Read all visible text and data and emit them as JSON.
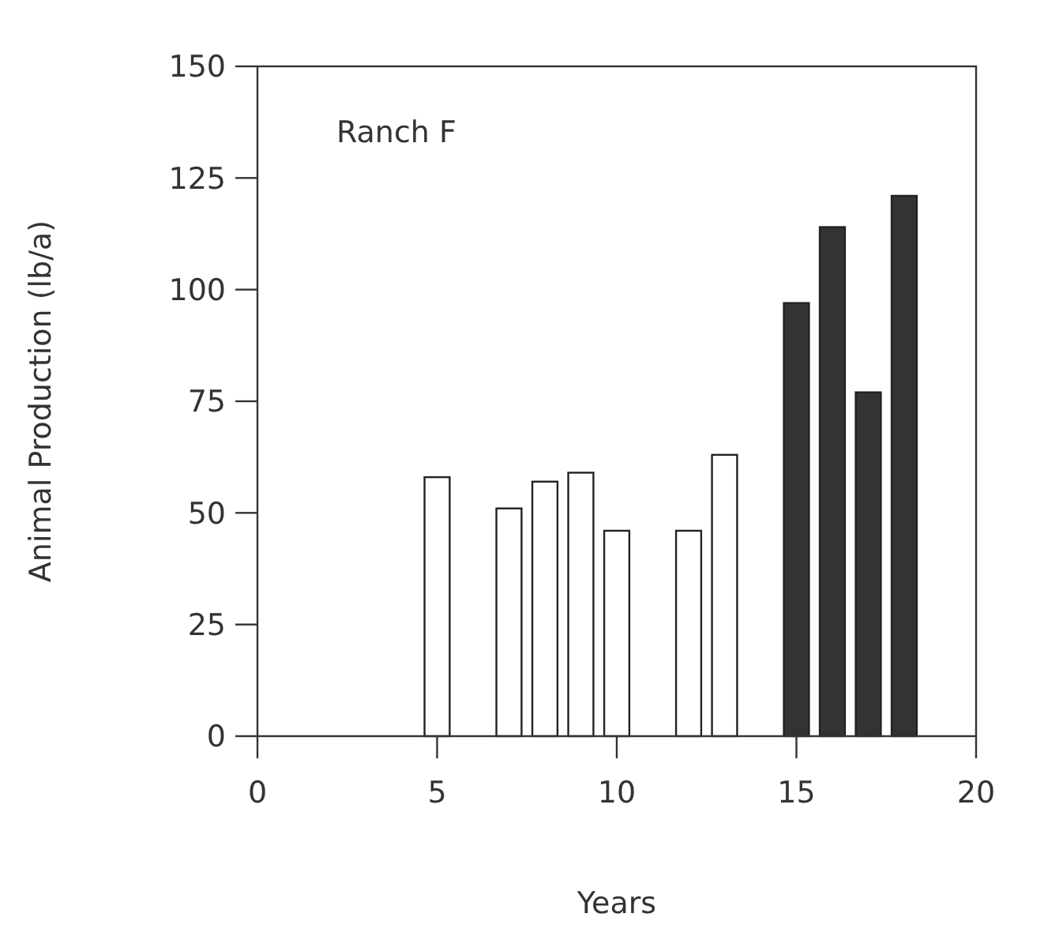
{
  "chart_data": {
    "type": "bar",
    "xlabel": "Years",
    "ylabel": "Animal Production (lb/a)",
    "annotations": [
      "Ranch F"
    ],
    "xlim": [
      0,
      20
    ],
    "xticks": [
      0,
      5,
      10,
      15,
      20
    ],
    "ylim": [
      0,
      150
    ],
    "yticks": [
      0,
      25,
      50,
      75,
      100,
      125,
      150
    ],
    "grid": false,
    "series": [
      {
        "color": "#ffffff",
        "x": [
          5,
          7,
          8,
          9,
          10,
          12,
          13
        ],
        "values": [
          58,
          51,
          57,
          59,
          46,
          46,
          63
        ]
      },
      {
        "color": "#333333",
        "x": [
          15,
          16,
          17,
          18
        ],
        "values": [
          97,
          114,
          77,
          121
        ]
      }
    ]
  }
}
